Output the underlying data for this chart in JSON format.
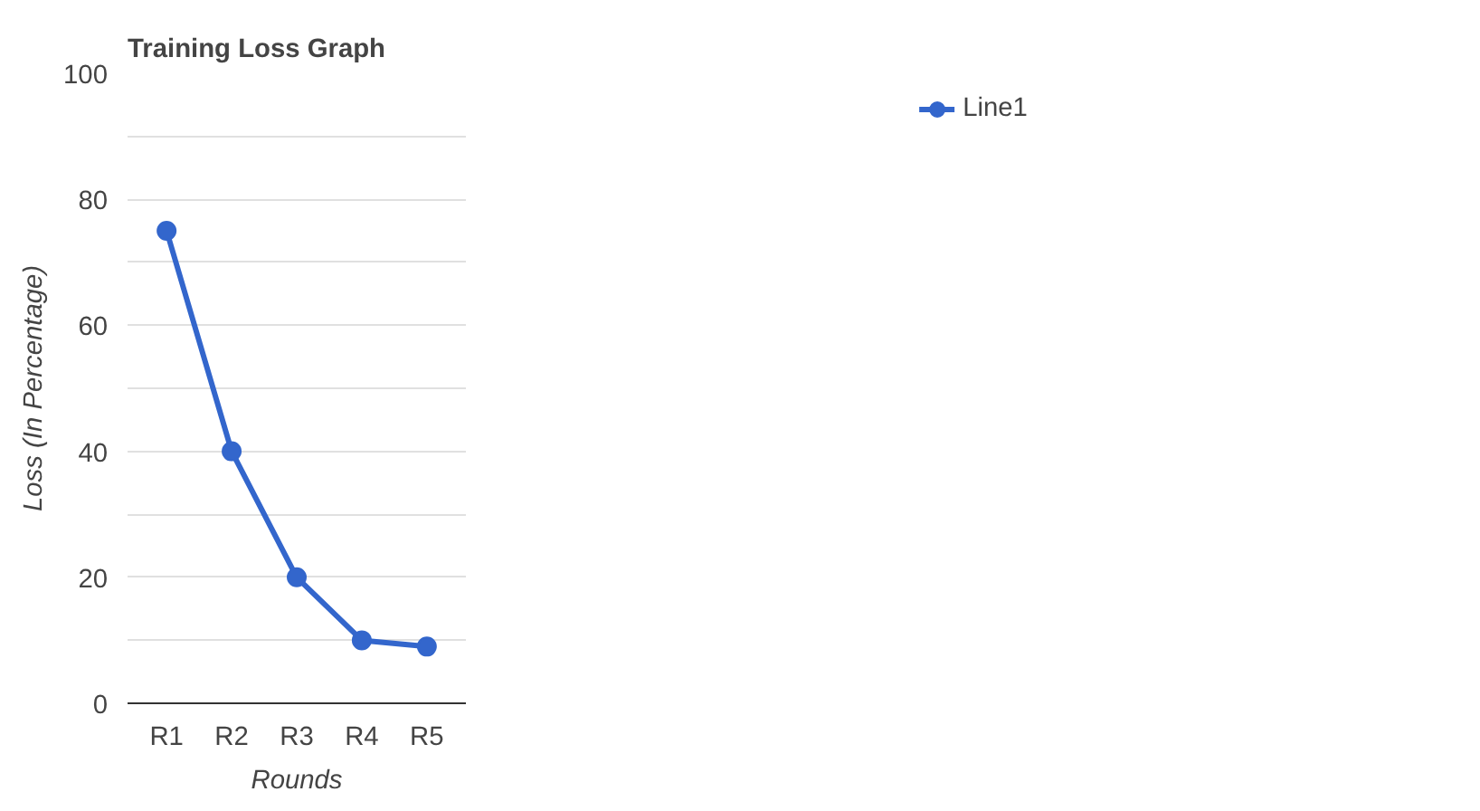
{
  "chart_data": {
    "type": "line",
    "title": "Training Loss Graph",
    "xlabel": "Rounds",
    "ylabel": "Loss (In Percentage)",
    "categories": [
      "R1",
      "R2",
      "R3",
      "R4",
      "R5"
    ],
    "series": [
      {
        "name": "Line1",
        "color": "#3366cc",
        "values": [
          75,
          40,
          20,
          10,
          9
        ]
      }
    ],
    "ylim": [
      0,
      100
    ],
    "yticks": [
      0,
      {
        "value": 10,
        "label": null
      },
      20,
      {
        "value": 30,
        "label": null
      },
      40,
      {
        "value": 50,
        "label": null
      },
      60,
      {
        "value": 70,
        "label": null
      },
      80,
      {
        "value": 90,
        "label": null
      },
      100
    ],
    "grid": "y",
    "legend": "right",
    "marker": "circle",
    "line_style": "solid"
  }
}
